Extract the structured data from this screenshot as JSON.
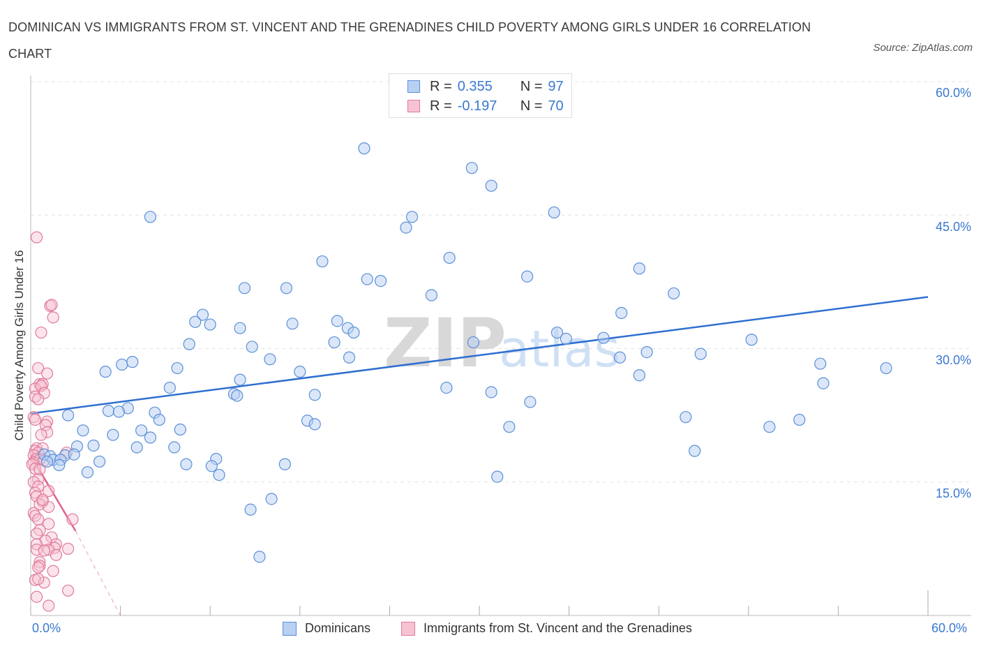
{
  "title": "DOMINICAN VS IMMIGRANTS FROM ST. VINCENT AND THE GRENADINES CHILD POVERTY AMONG GIRLS UNDER 16 CORRELATION CHART",
  "source": "Source: ZipAtlas.com",
  "watermark": {
    "zip": "ZIP",
    "atlas": "atlas"
  },
  "legend": {
    "r_label": "R =",
    "n_label": "N =",
    "rows": [
      {
        "r": "0.355",
        "n": "97"
      },
      {
        "r": "-0.197",
        "n": "70"
      }
    ]
  },
  "colors": {
    "blue": "#5b8fd8",
    "blue_fill": "#b8d0f2",
    "blue_line": "#2f6fd0",
    "pink": "#e07a9a",
    "pink_fill": "#f7c3d3",
    "pink_line": "#e0608a",
    "accent_text": "#3a78d0"
  },
  "chart_data": {
    "type": "scatter",
    "title": "DOMINICAN VS IMMIGRANTS FROM ST. VINCENT AND THE GRENADINES CHILD POVERTY AMONG GIRLS UNDER 16 CORRELATION CHART",
    "xlabel": "",
    "ylabel": "Child Poverty Among Girls Under 16",
    "xlim": [
      0,
      60
    ],
    "ylim": [
      0,
      60
    ],
    "x_tick_labels": [
      "0.0%",
      "60.0%"
    ],
    "y_tick_labels": [
      "15.0%",
      "30.0%",
      "45.0%",
      "60.0%"
    ],
    "y_ticks": [
      15,
      30,
      45,
      60
    ],
    "grid": true,
    "legend_position": "bottom",
    "series": [
      {
        "name": "Dominicans",
        "r": 0.355,
        "n": 97,
        "trend": {
          "x": [
            0,
            60
          ],
          "y": [
            22.7,
            35.8
          ]
        },
        "points": [
          [
            22.3,
            52.5
          ],
          [
            29.5,
            50.3
          ],
          [
            30.8,
            48.3
          ],
          [
            8.0,
            44.8
          ],
          [
            25.5,
            44.8
          ],
          [
            25.1,
            43.6
          ],
          [
            35.0,
            45.3
          ],
          [
            28.0,
            40.2
          ],
          [
            19.5,
            39.8
          ],
          [
            33.2,
            38.1
          ],
          [
            40.7,
            39.0
          ],
          [
            22.5,
            37.8
          ],
          [
            23.4,
            37.6
          ],
          [
            14.3,
            36.8
          ],
          [
            17.1,
            36.8
          ],
          [
            26.8,
            36.0
          ],
          [
            43.0,
            36.2
          ],
          [
            11.5,
            33.8
          ],
          [
            11.0,
            33.0
          ],
          [
            12.0,
            32.7
          ],
          [
            14.0,
            32.3
          ],
          [
            17.5,
            32.8
          ],
          [
            20.5,
            33.1
          ],
          [
            21.2,
            32.3
          ],
          [
            21.6,
            31.8
          ],
          [
            39.5,
            34.0
          ],
          [
            35.2,
            31.8
          ],
          [
            35.8,
            31.1
          ],
          [
            38.3,
            31.2
          ],
          [
            10.6,
            30.5
          ],
          [
            14.8,
            30.2
          ],
          [
            20.3,
            30.7
          ],
          [
            29.6,
            30.7
          ],
          [
            48.2,
            31.0
          ],
          [
            41.2,
            29.6
          ],
          [
            44.8,
            29.4
          ],
          [
            39.4,
            29.0
          ],
          [
            21.3,
            29.0
          ],
          [
            16.0,
            28.8
          ],
          [
            6.8,
            28.5
          ],
          [
            6.1,
            28.2
          ],
          [
            9.8,
            27.8
          ],
          [
            18.0,
            27.4
          ],
          [
            5.0,
            27.4
          ],
          [
            57.2,
            27.8
          ],
          [
            52.8,
            28.3
          ],
          [
            40.7,
            27.0
          ],
          [
            14.0,
            26.5
          ],
          [
            53.0,
            26.1
          ],
          [
            9.3,
            25.6
          ],
          [
            27.8,
            25.6
          ],
          [
            30.8,
            25.1
          ],
          [
            13.6,
            24.9
          ],
          [
            13.8,
            24.7
          ],
          [
            19.0,
            24.8
          ],
          [
            33.4,
            24.0
          ],
          [
            6.5,
            23.3
          ],
          [
            5.2,
            23.0
          ],
          [
            5.9,
            22.9
          ],
          [
            8.3,
            22.8
          ],
          [
            2.5,
            22.5
          ],
          [
            8.6,
            22.0
          ],
          [
            43.8,
            22.3
          ],
          [
            51.4,
            22.0
          ],
          [
            18.5,
            21.9
          ],
          [
            19.0,
            21.5
          ],
          [
            32.0,
            21.2
          ],
          [
            49.4,
            21.2
          ],
          [
            3.5,
            20.8
          ],
          [
            7.4,
            20.8
          ],
          [
            10.0,
            20.9
          ],
          [
            5.5,
            20.3
          ],
          [
            8.0,
            20.0
          ],
          [
            4.2,
            19.1
          ],
          [
            3.1,
            19.0
          ],
          [
            7.1,
            18.9
          ],
          [
            9.6,
            18.9
          ],
          [
            44.4,
            18.5
          ],
          [
            0.9,
            18.1
          ],
          [
            2.3,
            18.0
          ],
          [
            1.3,
            17.9
          ],
          [
            2.9,
            18.1
          ],
          [
            12.4,
            17.6
          ],
          [
            1.5,
            17.5
          ],
          [
            2.0,
            17.5
          ],
          [
            4.6,
            17.3
          ],
          [
            1.9,
            16.9
          ],
          [
            10.4,
            17.0
          ],
          [
            12.1,
            16.8
          ],
          [
            17.0,
            17.0
          ],
          [
            3.8,
            16.1
          ],
          [
            12.6,
            15.8
          ],
          [
            31.2,
            15.6
          ],
          [
            16.1,
            13.1
          ],
          [
            14.7,
            11.9
          ],
          [
            15.3,
            6.6
          ],
          [
            1.1,
            17.3
          ]
        ]
      },
      {
        "name": "Immigrants from St. Vincent and the Grenadines",
        "r": -0.197,
        "n": 70,
        "trend": {
          "x": [
            0,
            3.0
          ],
          "y": [
            18.0,
            9.5
          ]
        },
        "trend_dashed": {
          "x": [
            3.0,
            6.0
          ],
          "y": [
            9.5,
            0.0
          ]
        },
        "points": [
          [
            0.4,
            42.5
          ],
          [
            1.3,
            34.8
          ],
          [
            1.4,
            34.9
          ],
          [
            1.5,
            33.5
          ],
          [
            0.7,
            31.8
          ],
          [
            0.5,
            27.8
          ],
          [
            1.1,
            27.2
          ],
          [
            0.6,
            26.0
          ],
          [
            0.8,
            26.0
          ],
          [
            0.3,
            25.5
          ],
          [
            0.7,
            25.8
          ],
          [
            0.9,
            25.0
          ],
          [
            0.3,
            24.6
          ],
          [
            0.5,
            24.3
          ],
          [
            0.2,
            22.3
          ],
          [
            0.3,
            22.0
          ],
          [
            1.1,
            21.8
          ],
          [
            1.0,
            21.4
          ],
          [
            1.1,
            20.6
          ],
          [
            0.7,
            20.3
          ],
          [
            0.4,
            18.8
          ],
          [
            0.8,
            18.8
          ],
          [
            0.3,
            18.5
          ],
          [
            0.5,
            18.3
          ],
          [
            0.2,
            18.0
          ],
          [
            0.4,
            17.6
          ],
          [
            0.6,
            17.5
          ],
          [
            0.2,
            17.2
          ],
          [
            0.9,
            17.4
          ],
          [
            0.1,
            17.0
          ],
          [
            0.3,
            16.5
          ],
          [
            0.6,
            16.4
          ],
          [
            2.4,
            18.3
          ],
          [
            0.5,
            15.3
          ],
          [
            0.2,
            15.0
          ],
          [
            0.5,
            14.5
          ],
          [
            1.2,
            14.0
          ],
          [
            0.3,
            13.8
          ],
          [
            0.4,
            13.4
          ],
          [
            0.8,
            12.8
          ],
          [
            0.6,
            12.5
          ],
          [
            1.2,
            12.2
          ],
          [
            0.2,
            11.5
          ],
          [
            0.3,
            11.2
          ],
          [
            0.5,
            10.8
          ],
          [
            2.8,
            10.8
          ],
          [
            1.2,
            10.3
          ],
          [
            0.6,
            9.6
          ],
          [
            0.4,
            9.2
          ],
          [
            1.4,
            8.8
          ],
          [
            1.0,
            8.4
          ],
          [
            0.4,
            8.0
          ],
          [
            1.7,
            8.0
          ],
          [
            1.6,
            7.6
          ],
          [
            2.5,
            7.5
          ],
          [
            0.4,
            7.4
          ],
          [
            1.2,
            7.4
          ],
          [
            0.9,
            7.3
          ],
          [
            1.7,
            6.8
          ],
          [
            0.6,
            6.0
          ],
          [
            0.6,
            5.6
          ],
          [
            0.5,
            5.4
          ],
          [
            1.5,
            5.0
          ],
          [
            0.3,
            4.0
          ],
          [
            0.9,
            3.7
          ],
          [
            2.5,
            2.8
          ],
          [
            0.4,
            2.1
          ],
          [
            1.2,
            1.1
          ],
          [
            0.5,
            4.1
          ],
          [
            0.8,
            13.0
          ]
        ]
      }
    ]
  }
}
